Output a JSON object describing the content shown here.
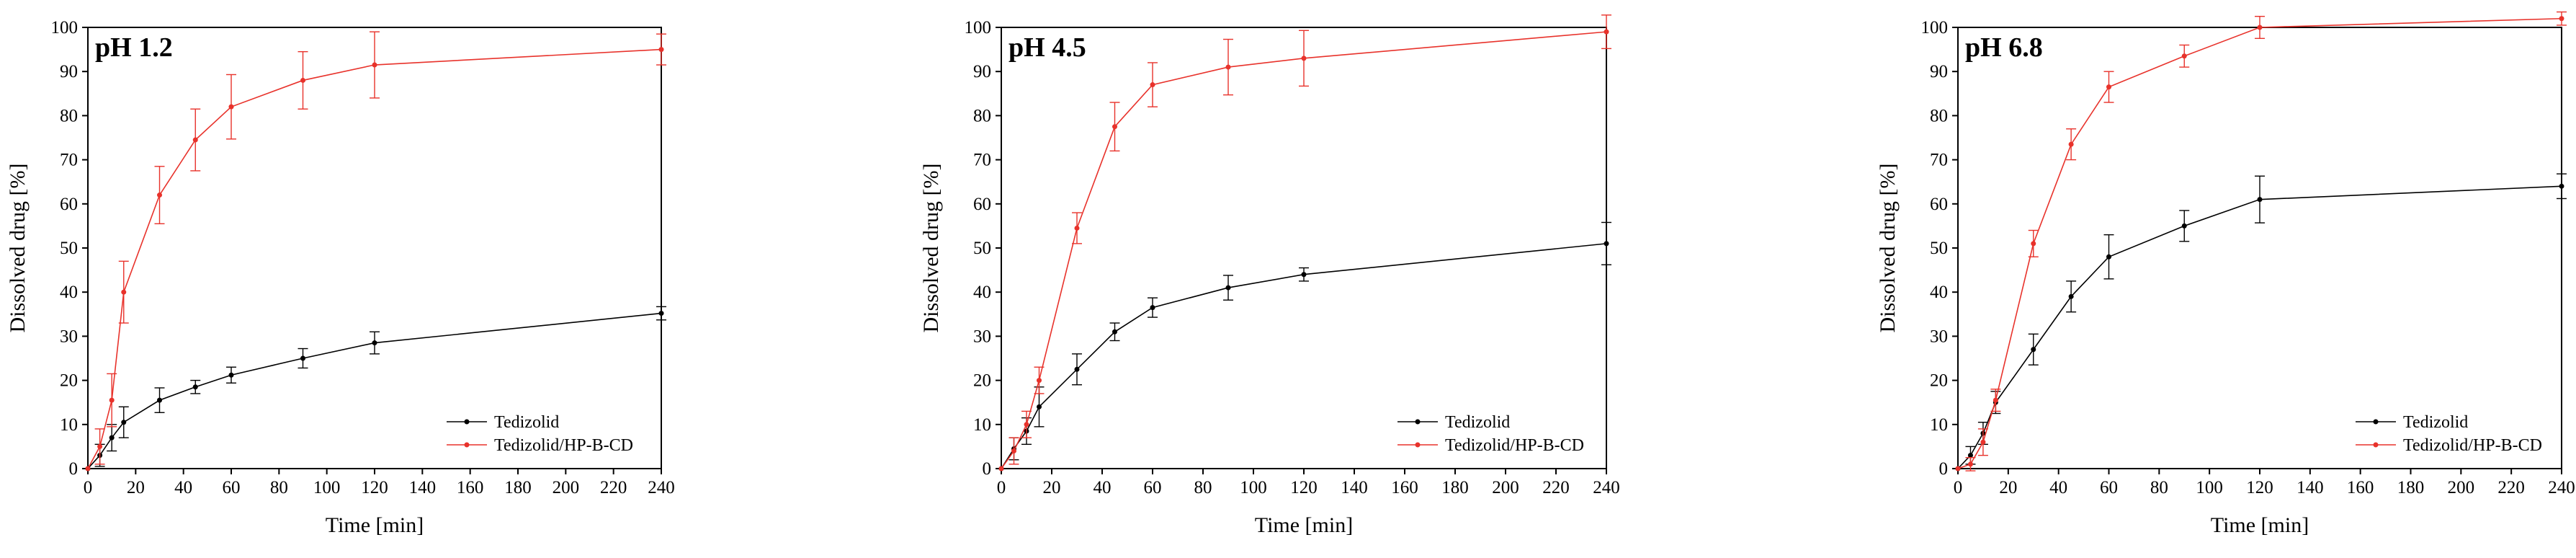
{
  "chart_data": [
    {
      "type": "line",
      "title": "pH 1.2",
      "xlabel": "Time [min]",
      "ylabel": "Dissolved drug [%]",
      "xlim": [
        0,
        240
      ],
      "ylim": [
        0,
        100
      ],
      "xticks": [
        0,
        20,
        40,
        60,
        80,
        100,
        120,
        140,
        160,
        180,
        200,
        220,
        240
      ],
      "yticks": [
        0,
        10,
        20,
        30,
        40,
        50,
        60,
        70,
        80,
        90,
        100
      ],
      "x": [
        0,
        5,
        10,
        15,
        30,
        45,
        60,
        90,
        120,
        240
      ],
      "series": [
        {
          "name": "Tedizolid",
          "color": "#000000",
          "values": [
            0,
            3,
            7,
            10.5,
            15.5,
            18.5,
            21.2,
            25,
            28.5,
            35.2
          ],
          "errors": [
            0,
            2.5,
            3,
            3.5,
            2.8,
            1.5,
            1.8,
            2.2,
            2.5,
            1.5
          ]
        },
        {
          "name": "Tedizolid/HP-B-CD",
          "color": "#e8322b",
          "values": [
            0,
            5,
            15.5,
            40,
            62,
            74.5,
            82,
            88,
            91.5,
            95
          ],
          "errors": [
            0,
            4,
            6,
            7,
            6.5,
            7,
            7.3,
            6.5,
            7.5,
            3.5
          ]
        }
      ]
    },
    {
      "type": "line",
      "title": "pH 4.5",
      "xlabel": "Time [min]",
      "ylabel": "Dissolved drug [%]",
      "xlim": [
        0,
        240
      ],
      "ylim": [
        0,
        100
      ],
      "xticks": [
        0,
        20,
        40,
        60,
        80,
        100,
        120,
        140,
        160,
        180,
        200,
        220,
        240
      ],
      "yticks": [
        0,
        10,
        20,
        30,
        40,
        50,
        60,
        70,
        80,
        90,
        100
      ],
      "x": [
        0,
        5,
        10,
        15,
        30,
        45,
        60,
        90,
        120,
        240
      ],
      "series": [
        {
          "name": "Tedizolid",
          "color": "#000000",
          "values": [
            0,
            4.5,
            8.5,
            14,
            22.5,
            31,
            36.5,
            41,
            44,
            51
          ],
          "errors": [
            0,
            2.5,
            3,
            4.5,
            3.5,
            2,
            2.2,
            2.8,
            1.5,
            4.8
          ]
        },
        {
          "name": "Tedizolid/HP-B-CD",
          "color": "#e8322b",
          "values": [
            0,
            4,
            10,
            20,
            54.5,
            77.5,
            87,
            91,
            93,
            99
          ],
          "errors": [
            0,
            3,
            3,
            3,
            3.5,
            5.5,
            5,
            6.3,
            6.3,
            3.8
          ]
        }
      ]
    },
    {
      "type": "line",
      "title": "pH 6.8",
      "xlabel": "Time [min]",
      "ylabel": "Dissolved drug [%]",
      "xlim": [
        0,
        240
      ],
      "ylim": [
        0,
        100
      ],
      "xticks": [
        0,
        20,
        40,
        60,
        80,
        100,
        120,
        140,
        160,
        180,
        200,
        220,
        240
      ],
      "yticks": [
        0,
        10,
        20,
        30,
        40,
        50,
        60,
        70,
        80,
        90,
        100
      ],
      "x": [
        0,
        5,
        10,
        15,
        30,
        45,
        60,
        90,
        120,
        240
      ],
      "series": [
        {
          "name": "Tedizolid",
          "color": "#000000",
          "values": [
            0,
            3,
            8,
            15,
            27,
            39,
            48,
            55,
            61,
            64
          ],
          "errors": [
            0,
            2,
            2.5,
            2.5,
            3.5,
            3.5,
            5,
            3.5,
            5.3,
            2.8
          ]
        },
        {
          "name": "Tedizolid/HP-B-CD",
          "color": "#e8322b",
          "values": [
            0,
            1,
            6,
            15.5,
            51,
            73.5,
            86.5,
            93.5,
            100,
            102
          ],
          "errors": [
            0,
            1.5,
            3,
            2.5,
            3,
            3.5,
            3.5,
            2.5,
            2.5,
            1.5
          ]
        }
      ]
    }
  ]
}
